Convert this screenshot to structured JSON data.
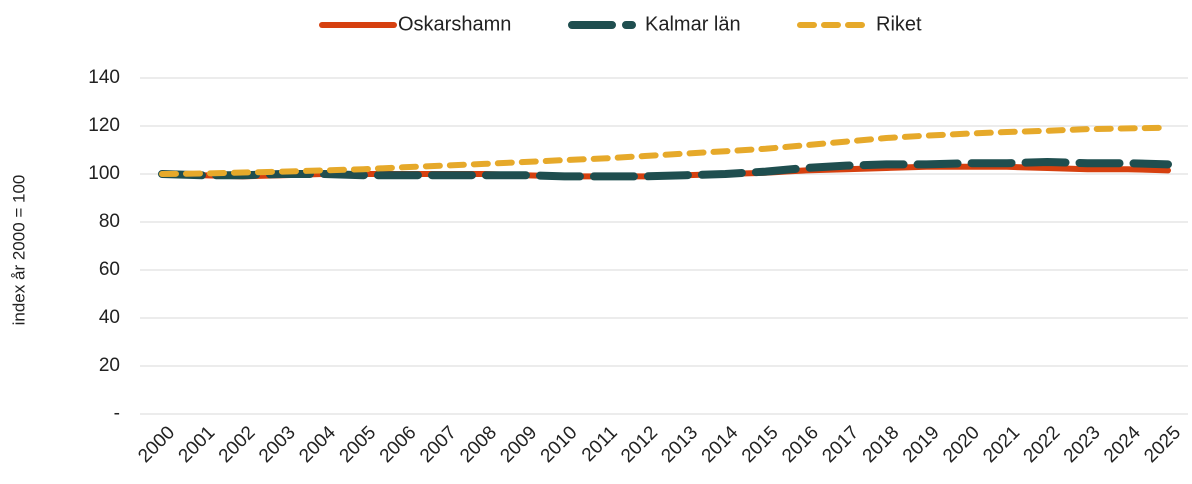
{
  "chart_data": {
    "type": "line",
    "y_label": "index år 2000 = 100",
    "categories": [
      "2000",
      "2001",
      "2002",
      "2003",
      "2004",
      "2005",
      "2006",
      "2007",
      "2008",
      "2009",
      "2010",
      "2011",
      "2012",
      "2013",
      "2014",
      "2015",
      "2016",
      "2017",
      "2018",
      "2019",
      "2020",
      "2021",
      "2022",
      "2023",
      "2024",
      "2025"
    ],
    "series": [
      {
        "name": "Oskarshamn",
        "color": "#d6400f",
        "values": [
          100,
          99.5,
          99,
          99.5,
          100,
          100,
          100,
          100,
          100,
          99.5,
          99,
          99,
          99,
          99.5,
          100,
          100.5,
          101.5,
          102,
          102.5,
          103,
          103,
          103,
          102.5,
          102,
          102,
          101.5
        ]
      },
      {
        "name": "Kalmar län",
        "color": "#1f4e4f",
        "values": [
          100,
          99.5,
          99.5,
          100,
          100,
          99.5,
          99.5,
          99.5,
          99.5,
          99.5,
          99,
          99,
          99,
          99.5,
          100,
          101,
          102.5,
          103.5,
          104,
          104,
          104.5,
          104.5,
          105,
          104.5,
          104.5,
          104
        ]
      },
      {
        "name": "Riket",
        "color": "#e6a92a",
        "values": [
          100,
          100.2,
          100.6,
          101,
          101.5,
          102,
          102.8,
          103.5,
          104.2,
          105,
          105.8,
          106.5,
          107.5,
          108.5,
          109.5,
          110.5,
          112,
          113.5,
          115,
          116,
          116.8,
          117.5,
          118,
          118.7,
          119,
          119.3
        ]
      }
    ],
    "ylim": [
      0,
      140
    ],
    "yticks": [
      {
        "value": 0,
        "label": "-"
      },
      20,
      40,
      60,
      80,
      100,
      120,
      140
    ],
    "grid": true,
    "legend": "top"
  }
}
